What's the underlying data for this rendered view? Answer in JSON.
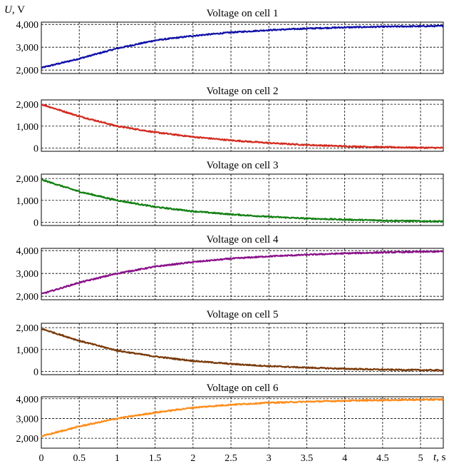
{
  "y_axis_label": {
    "symbol": "U",
    "unit": ", V"
  },
  "x_axis_label": {
    "symbol": "t",
    "unit": ", s"
  },
  "chart_data": [
    {
      "type": "line",
      "title": "Voltage on cell 1",
      "color": "#1010a8",
      "xlim": [
        0,
        5.3
      ],
      "ylim": [
        1850,
        4100
      ],
      "yticks": [
        2000,
        3000,
        4000
      ],
      "yticklabels": [
        "2,000",
        "3,000",
        "4,000"
      ],
      "xticks": [
        0,
        0.5,
        1,
        1.5,
        2,
        2.5,
        3,
        3.5,
        4,
        4.5,
        5
      ],
      "series": [
        {
          "x": [
            0,
            0.5,
            1,
            1.5,
            2,
            2.5,
            3,
            3.5,
            4,
            4.5,
            5,
            5.3
          ],
          "y": [
            2100,
            2500,
            2950,
            3300,
            3500,
            3650,
            3750,
            3820,
            3870,
            3900,
            3920,
            3930
          ]
        }
      ]
    },
    {
      "type": "line",
      "title": "Voltage on cell 2",
      "color": "#d42a1e",
      "xlim": [
        0,
        5.3
      ],
      "ylim": [
        -150,
        2200
      ],
      "yticks": [
        0,
        1000,
        2000
      ],
      "yticklabels": [
        "0",
        "1,000",
        "2,000"
      ],
      "xticks": [
        0,
        0.5,
        1,
        1.5,
        2,
        2.5,
        3,
        3.5,
        4,
        4.5,
        5
      ],
      "series": [
        {
          "x": [
            0,
            0.5,
            1,
            1.5,
            2,
            2.5,
            3,
            3.5,
            4,
            4.5,
            5,
            5.3
          ],
          "y": [
            2000,
            1450,
            1000,
            720,
            510,
            350,
            230,
            140,
            80,
            40,
            15,
            5
          ]
        }
      ]
    },
    {
      "type": "line",
      "title": "Voltage on cell 3",
      "color": "#128012",
      "xlim": [
        0,
        5.3
      ],
      "ylim": [
        -150,
        2200
      ],
      "yticks": [
        0,
        1000,
        2000
      ],
      "yticklabels": [
        "0",
        "1,000",
        "2,000"
      ],
      "xticks": [
        0,
        0.5,
        1,
        1.5,
        2,
        2.5,
        3,
        3.5,
        4,
        4.5,
        5
      ],
      "series": [
        {
          "x": [
            0,
            0.5,
            1,
            1.5,
            2,
            2.5,
            3,
            3.5,
            4,
            4.5,
            5,
            5.3
          ],
          "y": [
            1950,
            1400,
            1000,
            700,
            500,
            360,
            250,
            170,
            120,
            80,
            50,
            40
          ]
        }
      ]
    },
    {
      "type": "line",
      "title": "Voltage on cell 4",
      "color": "#8a108a",
      "xlim": [
        0,
        5.3
      ],
      "ylim": [
        1850,
        4100
      ],
      "yticks": [
        2000,
        3000,
        4000
      ],
      "yticklabels": [
        "2,000",
        "3,000",
        "4,000"
      ],
      "xticks": [
        0,
        0.5,
        1,
        1.5,
        2,
        2.5,
        3,
        3.5,
        4,
        4.5,
        5
      ],
      "series": [
        {
          "x": [
            0,
            0.5,
            1,
            1.5,
            2,
            2.5,
            3,
            3.5,
            4,
            4.5,
            5,
            5.3
          ],
          "y": [
            2100,
            2600,
            3000,
            3300,
            3500,
            3650,
            3750,
            3820,
            3880,
            3920,
            3950,
            3960
          ]
        }
      ]
    },
    {
      "type": "line",
      "title": "Voltage on cell 5",
      "color": "#7a3a0a",
      "xlim": [
        0,
        5.3
      ],
      "ylim": [
        -150,
        2200
      ],
      "yticks": [
        0,
        1000,
        2000
      ],
      "yticklabels": [
        "0",
        "1,000",
        "2,000"
      ],
      "xticks": [
        0,
        0.5,
        1,
        1.5,
        2,
        2.5,
        3,
        3.5,
        4,
        4.5,
        5
      ],
      "series": [
        {
          "x": [
            0,
            0.5,
            1,
            1.5,
            2,
            2.5,
            3,
            3.5,
            4,
            4.5,
            5,
            5.3
          ],
          "y": [
            1950,
            1400,
            950,
            680,
            480,
            340,
            240,
            170,
            120,
            80,
            60,
            50
          ]
        }
      ]
    },
    {
      "type": "line",
      "title": "Voltage on cell 6",
      "color": "#ff8c1a",
      "xlim": [
        0,
        5.3
      ],
      "ylim": [
        1500,
        4100
      ],
      "yticks": [
        2000,
        3000,
        4000
      ],
      "yticklabels": [
        "2,000",
        "3,000",
        "4,000"
      ],
      "xticks": [
        0,
        0.5,
        1,
        1.5,
        2,
        2.5,
        3,
        3.5,
        4,
        4.5,
        5
      ],
      "xticklabels": [
        "0",
        "0.5",
        "1",
        "1.5",
        "2",
        "2.5",
        "3",
        "3.5",
        "4",
        "4.5",
        "5"
      ],
      "series": [
        {
          "x": [
            0,
            0.5,
            1,
            1.5,
            2,
            2.5,
            3,
            3.5,
            4,
            4.5,
            5,
            5.3
          ],
          "y": [
            2100,
            2600,
            3000,
            3300,
            3550,
            3700,
            3800,
            3850,
            3900,
            3930,
            3950,
            3960
          ]
        }
      ]
    }
  ]
}
